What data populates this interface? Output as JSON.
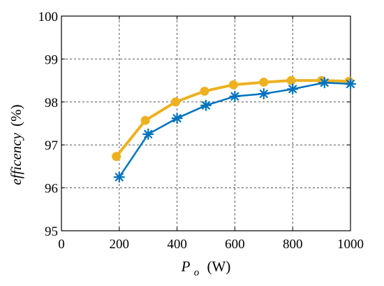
{
  "chart_data": {
    "type": "line",
    "xlabel": {
      "symbol": "P",
      "subscript": "o",
      "unit": "(W)"
    },
    "ylabel": {
      "text": "efficency",
      "unit": "(%)"
    },
    "xlim": [
      0,
      1000
    ],
    "ylim": [
      95,
      100
    ],
    "xticks": [
      0,
      200,
      400,
      600,
      800,
      1000
    ],
    "yticks": [
      95,
      96,
      97,
      98,
      99,
      100
    ],
    "xtick_labels": [
      "0",
      "200",
      "400",
      "600",
      "800",
      "1000"
    ],
    "ytick_labels": [
      "95",
      "96",
      "97",
      "98",
      "99",
      "100"
    ],
    "grid": true,
    "series": [
      {
        "color": "#EDB120",
        "marker": "circle",
        "x": [
          190,
          290,
          395,
          495,
          595,
          700,
          795,
          900,
          995
        ],
        "y": [
          96.73,
          97.57,
          98.0,
          98.25,
          98.4,
          98.46,
          98.5,
          98.5,
          98.48
        ]
      },
      {
        "color": "#0072BD",
        "marker": "asterisk",
        "x": [
          200,
          300,
          400,
          500,
          600,
          700,
          800,
          910,
          1000
        ],
        "y": [
          96.25,
          97.25,
          97.62,
          97.92,
          98.13,
          98.19,
          98.3,
          98.45,
          98.42
        ]
      }
    ]
  }
}
